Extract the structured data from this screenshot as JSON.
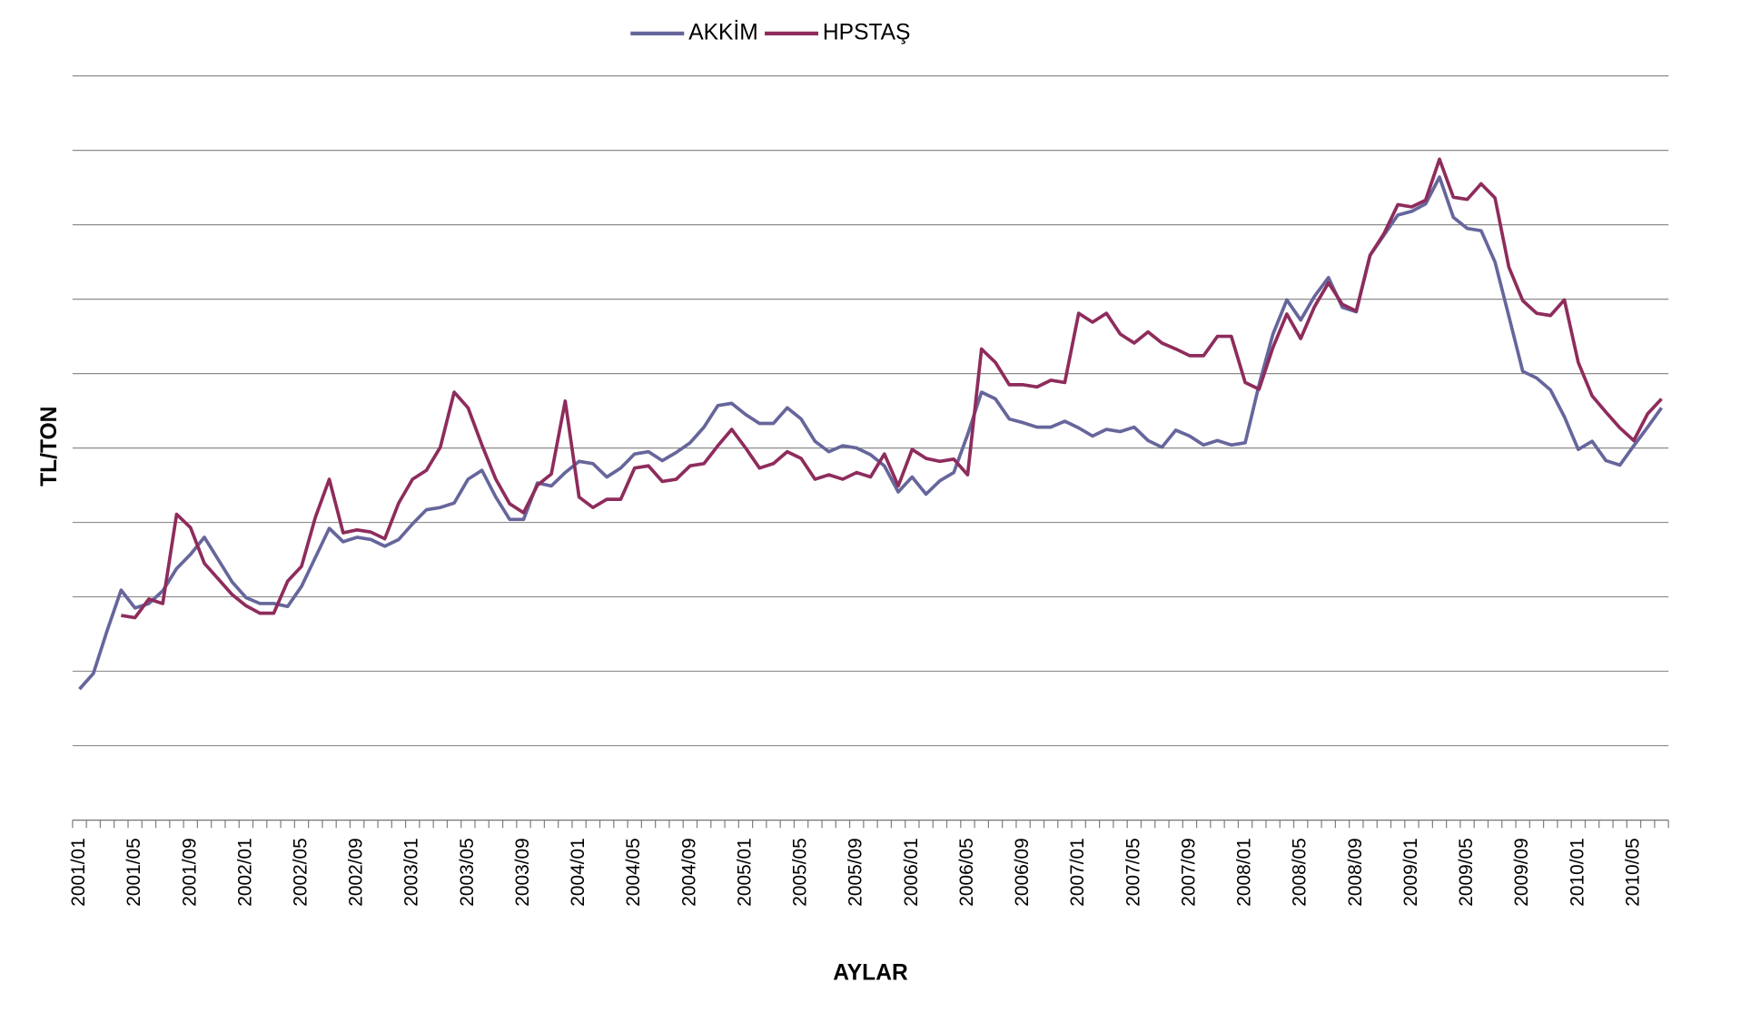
{
  "chart_data": {
    "type": "line",
    "x_label": "AYLAR",
    "y_label": "TL/TON",
    "categories": [
      "2001/01",
      null,
      null,
      null,
      "2001/05",
      null,
      null,
      null,
      "2001/09",
      null,
      null,
      null,
      "2002/01",
      null,
      null,
      null,
      "2002/05",
      null,
      null,
      null,
      "2002/09",
      null,
      null,
      null,
      "2003/01",
      null,
      null,
      null,
      "2003/05",
      null,
      null,
      null,
      "2003/09",
      null,
      null,
      null,
      "2004/01",
      null,
      null,
      null,
      "2004/05",
      null,
      null,
      null,
      "2004/09",
      null,
      null,
      null,
      "2005/01",
      null,
      null,
      null,
      "2005/05",
      null,
      null,
      null,
      "2005/09",
      null,
      null,
      null,
      "2006/01",
      null,
      null,
      null,
      "2006/05",
      null,
      null,
      null,
      "2006/09",
      null,
      null,
      null,
      "2007/01",
      null,
      null,
      null,
      "2007/05",
      null,
      null,
      null,
      "2007/09",
      null,
      null,
      null,
      "2008/01",
      null,
      null,
      null,
      "2008/05",
      null,
      null,
      null,
      "2008/09",
      null,
      null,
      null,
      "2009/01",
      null,
      null,
      null,
      "2009/05",
      null,
      null,
      null,
      "2009/09",
      null,
      null,
      null,
      "2010/01",
      null,
      null,
      null,
      "2010/05",
      null,
      null
    ],
    "series": [
      {
        "name": "AKKİM",
        "color": "#66669c",
        "values": [
          176,
          197,
          255,
          309,
          285,
          291,
          308,
          338,
          357,
          380,
          350,
          320,
          299,
          291,
          291,
          287,
          314,
          353,
          392,
          374,
          380,
          377,
          368,
          377,
          398,
          417,
          420,
          426,
          458,
          470,
          434,
          404,
          404,
          453,
          449,
          467,
          482,
          479,
          461,
          473,
          492,
          495,
          483,
          494,
          507,
          528,
          557,
          560,
          545,
          533,
          533,
          554,
          539,
          509,
          495,
          503,
          500,
          491,
          476,
          441,
          461,
          438,
          456,
          467,
          518,
          575,
          566,
          539,
          534,
          528,
          528,
          536,
          527,
          516,
          525,
          522,
          528,
          510,
          501,
          524,
          516,
          504,
          510,
          504,
          507,
          585,
          653,
          699,
          672,
          704,
          729,
          689,
          683,
          759,
          786,
          813,
          818,
          828,
          864,
          810,
          795,
          792,
          750,
          677,
          603,
          594,
          578,
          542,
          498,
          509,
          483,
          477,
          503,
          528,
          554
        ]
      },
      {
        "name": "HPSTAŞ",
        "color": "#8e2c5c",
        "values": [
          null,
          null,
          null,
          275,
          272,
          297,
          291,
          411,
          393,
          345,
          324,
          303,
          288,
          278,
          278,
          321,
          341,
          407,
          458,
          386,
          390,
          387,
          378,
          426,
          458,
          470,
          501,
          575,
          554,
          504,
          458,
          425,
          413,
          450,
          465,
          563,
          434,
          420,
          431,
          431,
          473,
          476,
          455,
          458,
          476,
          479,
          503,
          525,
          500,
          473,
          479,
          495,
          486,
          458,
          464,
          458,
          467,
          461,
          492,
          449,
          498,
          486,
          482,
          485,
          464,
          633,
          615,
          585,
          585,
          582,
          591,
          588,
          681,
          669,
          681,
          653,
          641,
          656,
          641,
          633,
          624,
          624,
          650,
          650,
          588,
          579,
          635,
          680,
          647,
          690,
          722,
          693,
          684,
          759,
          788,
          827,
          824,
          833,
          888,
          837,
          834,
          855,
          836,
          743,
          698,
          681,
          678,
          699,
          615,
          570,
          548,
          527,
          510,
          546,
          566
        ]
      }
    ],
    "ylim": [
      0,
      1000
    ],
    "yticks": [
      0,
      100,
      200,
      300,
      400,
      500,
      600,
      700,
      800,
      900,
      1000
    ],
    "grid": true,
    "legend": "top"
  }
}
